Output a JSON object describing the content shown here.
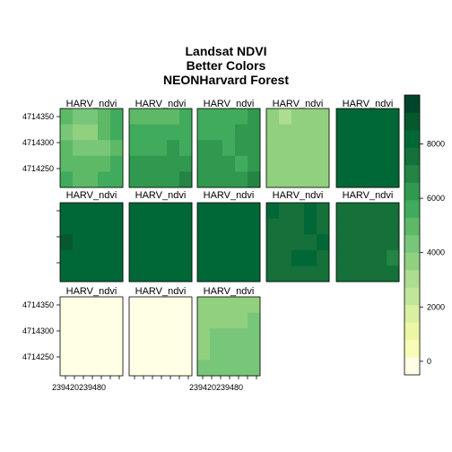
{
  "chart_data": {
    "type": "heatmap",
    "title_lines": [
      "Landsat NDVI",
      "Better Colors",
      "NEONHarvard Forest"
    ],
    "panel_label": "HARV_ndvi",
    "layout": {
      "columns": 5,
      "rows": 3,
      "panel_count": 13
    },
    "x_tick_labels": [
      "239420",
      "239480"
    ],
    "y_tick_labels": [
      "4714350",
      "4714300",
      "4714250"
    ],
    "colorbar": {
      "ticks": [
        0,
        2000,
        4000,
        6000,
        8000
      ],
      "range": [
        -500,
        9800
      ],
      "colors": [
        "#FFFFE5",
        "#F7FCB9",
        "#ECF7A4",
        "#D9F0A3",
        "#C2E699",
        "#ADDD8E",
        "#91D07F",
        "#78C679",
        "#5DB966",
        "#41AB5D",
        "#31994F",
        "#238443",
        "#157039",
        "#006837",
        "#08582E",
        "#004529"
      ]
    },
    "grid_size": [
      5,
      5
    ],
    "panels": [
      [
        [
          5000,
          4200,
          4600,
          5000,
          5400
        ],
        [
          4600,
          3600,
          4000,
          4800,
          5400
        ],
        [
          4800,
          4200,
          4400,
          4600,
          5200
        ],
        [
          5000,
          4800,
          5000,
          5200,
          5400
        ],
        [
          5400,
          5200,
          5000,
          5400,
          5400
        ]
      ],
      [
        [
          5200,
          4800,
          4800,
          5000,
          5400
        ],
        [
          5600,
          5400,
          5400,
          5600,
          5600
        ],
        [
          5800,
          5600,
          5800,
          6000,
          5800
        ],
        [
          6200,
          6000,
          6000,
          6200,
          6400
        ],
        [
          6400,
          6400,
          6200,
          6400,
          6600
        ]
      ],
      [
        [
          5600,
          5400,
          5600,
          5800,
          6000
        ],
        [
          5800,
          5800,
          5400,
          6200,
          6200
        ],
        [
          6000,
          6000,
          5800,
          6400,
          6400
        ],
        [
          6200,
          6000,
          6200,
          5600,
          6400
        ],
        [
          6400,
          6200,
          6200,
          6400,
          6600
        ]
      ],
      [
        [
          3800,
          3200,
          3600,
          3600,
          3600
        ],
        [
          3600,
          3600,
          3600,
          3800,
          3800
        ],
        [
          3800,
          3600,
          3400,
          3600,
          4000
        ],
        [
          3400,
          3800,
          3600,
          3600,
          3800
        ],
        [
          3600,
          3600,
          3400,
          3600,
          3800
        ]
      ],
      [
        [
          8200,
          8200,
          8200,
          8200,
          8200
        ],
        [
          8200,
          8200,
          8200,
          8200,
          8200
        ],
        [
          8200,
          8200,
          8200,
          8200,
          8200
        ],
        [
          8200,
          8200,
          8200,
          8200,
          8200
        ],
        [
          8200,
          8200,
          8200,
          8200,
          8200
        ]
      ],
      [
        [
          8100,
          8100,
          8100,
          8100,
          8100
        ],
        [
          8100,
          8100,
          8100,
          8100,
          8100
        ],
        [
          8600,
          8100,
          8100,
          8100,
          8100
        ],
        [
          8100,
          8100,
          8100,
          8100,
          8100
        ],
        [
          8100,
          8100,
          8100,
          8100,
          8100
        ]
      ],
      [
        [
          8200,
          8200,
          8200,
          8200,
          8200
        ],
        [
          8200,
          8200,
          8200,
          8200,
          8200
        ],
        [
          8200,
          8200,
          8200,
          8200,
          8200
        ],
        [
          8200,
          8200,
          8200,
          8200,
          8200
        ],
        [
          8200,
          8200,
          8200,
          8200,
          8200
        ]
      ],
      [
        [
          8200,
          8200,
          8200,
          8200,
          8200
        ],
        [
          8200,
          8200,
          8200,
          8200,
          8200
        ],
        [
          8200,
          8200,
          8200,
          8200,
          8200
        ],
        [
          8200,
          8200,
          8200,
          8200,
          8200
        ],
        [
          8200,
          8200,
          8200,
          8200,
          8200
        ]
      ],
      [
        [
          8400,
          7600,
          7400,
          8200,
          7400
        ],
        [
          7600,
          7400,
          7400,
          8000,
          7400
        ],
        [
          7400,
          7400,
          7600,
          7600,
          8200
        ],
        [
          7400,
          7400,
          8000,
          8000,
          7400
        ],
        [
          7400,
          7400,
          7600,
          7600,
          7400
        ]
      ],
      [
        [
          7800,
          7800,
          7800,
          7800,
          7800
        ],
        [
          7800,
          7600,
          7600,
          7600,
          7600
        ],
        [
          7400,
          7400,
          7400,
          7400,
          7400
        ],
        [
          7600,
          7600,
          7600,
          7600,
          7200
        ],
        [
          7600,
          7600,
          7600,
          7600,
          7600
        ]
      ],
      [
        [
          80,
          80,
          80,
          80,
          80
        ],
        [
          80,
          80,
          80,
          80,
          80
        ],
        [
          80,
          80,
          80,
          80,
          80
        ],
        [
          80,
          80,
          80,
          -200,
          80
        ],
        [
          80,
          80,
          80,
          80,
          80
        ]
      ],
      [
        [
          30,
          30,
          30,
          30,
          30
        ],
        [
          30,
          30,
          30,
          30,
          30
        ],
        [
          30,
          30,
          30,
          30,
          30
        ],
        [
          30,
          30,
          30,
          30,
          30
        ],
        [
          30,
          30,
          30,
          30,
          30
        ]
      ],
      [
        [
          4000,
          3600,
          3600,
          3800,
          4000
        ],
        [
          4000,
          3800,
          3800,
          4000,
          4200
        ],
        [
          4000,
          4200,
          4200,
          4400,
          4400
        ],
        [
          4000,
          4200,
          4200,
          4200,
          4600
        ],
        [
          4400,
          4200,
          4400,
          4400,
          4600
        ]
      ]
    ]
  }
}
